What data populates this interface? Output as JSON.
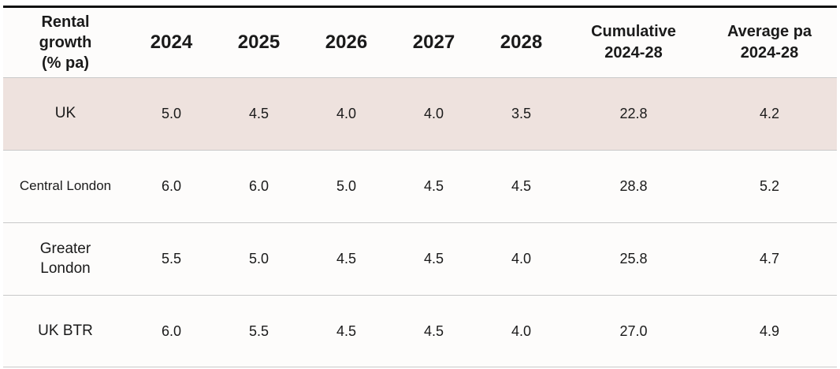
{
  "chart_data": {
    "type": "table",
    "columns": [
      "Rental\ngrowth\n(% pa)",
      "2024",
      "2025",
      "2026",
      "2027",
      "2028",
      "Cumulative\n2024-28",
      "Average pa\n2024-28"
    ],
    "rows": [
      {
        "label": "UK",
        "values": [
          "5.0",
          "4.5",
          "4.0",
          "4.0",
          "3.5",
          "22.8",
          "4.2"
        ]
      },
      {
        "label": "Central London",
        "values": [
          "6.0",
          "6.0",
          "5.0",
          "4.5",
          "4.5",
          "28.8",
          "5.2"
        ]
      },
      {
        "label": "Greater\nLondon",
        "values": [
          "5.5",
          "5.0",
          "4.5",
          "4.5",
          "4.0",
          "25.8",
          "4.7"
        ]
      },
      {
        "label": "UK BTR",
        "values": [
          "6.0",
          "5.5",
          "4.5",
          "4.5",
          "4.0",
          "27.0",
          "4.9"
        ]
      }
    ],
    "highlight_color": "#eee2de"
  }
}
